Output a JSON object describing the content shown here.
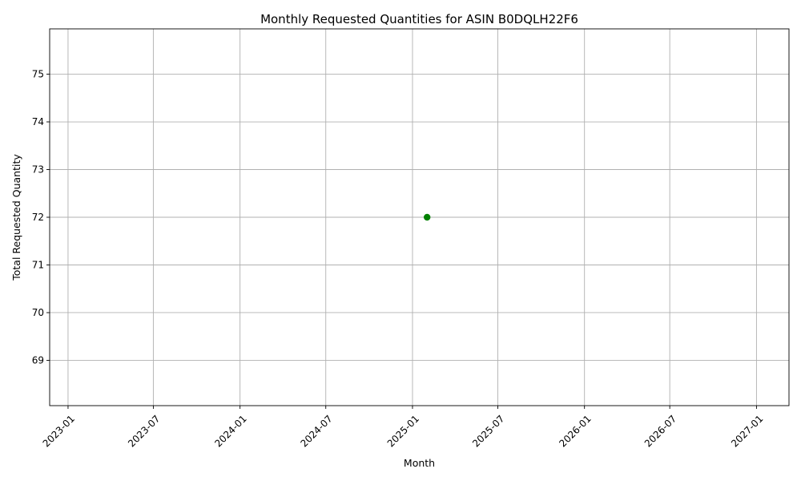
{
  "chart_data": {
    "type": "line",
    "title": "Monthly Requested Quantities for ASIN B0DQLH22F6",
    "xlabel": "Month",
    "ylabel": "Total Requested Quantity",
    "x_ticks": [
      "2023-01",
      "2023-07",
      "2024-01",
      "2024-07",
      "2025-01",
      "2025-07",
      "2026-01",
      "2026-07",
      "2027-01"
    ],
    "y_ticks": [
      69,
      70,
      71,
      72,
      73,
      74,
      75
    ],
    "xlim": [
      "2022-11-23",
      "2027-03-11"
    ],
    "ylim": [
      68.05,
      75.95
    ],
    "grid": true,
    "series": [
      {
        "color": "#008000",
        "marker": "circle",
        "points": [
          {
            "x": "2025-02-01",
            "y": 72
          }
        ]
      }
    ]
  }
}
